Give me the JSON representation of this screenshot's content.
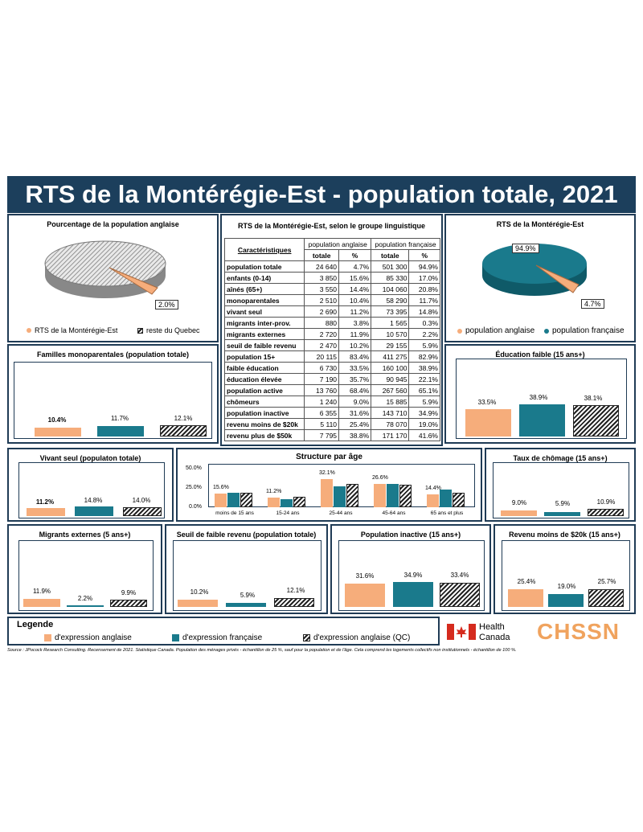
{
  "title": "RTS de la Montérégie-Est - population totale, 2021",
  "colors": {
    "english": "#f6ad7b",
    "french": "#1a7a8c",
    "header": "#1c3f5c"
  },
  "pie_left": {
    "title": "Pourcentage de la population anglaise",
    "label": "2.0%",
    "legend": [
      "RTS de la Montérégie-Est",
      "reste du Quebec"
    ]
  },
  "pie_right": {
    "title": "RTS de la Montérégie-Est",
    "label_big": "94.9%",
    "label_small": "4.7%",
    "legend": [
      "population anglaise",
      "population française"
    ]
  },
  "table": {
    "title": "RTS de la Montérégie-Est, selon le groupe linguistique",
    "head_char": "Caractéristiques",
    "head_en": "population anglaise",
    "head_fr": "population française",
    "sub_total": "totale",
    "sub_pct": "%",
    "rows": [
      {
        "label": "population totale",
        "en_t": "24 640",
        "en_p": "4.7%",
        "fr_t": "501 300",
        "fr_p": "94.9%"
      },
      {
        "label": "enfants (0-14)",
        "en_t": "3 850",
        "en_p": "15.6%",
        "fr_t": "85 330",
        "fr_p": "17.0%"
      },
      {
        "label": "aînés (65+)",
        "en_t": "3 550",
        "en_p": "14.4%",
        "fr_t": "104 060",
        "fr_p": "20.8%"
      },
      {
        "label": "monoparentales",
        "en_t": "2 510",
        "en_p": "10.4%",
        "fr_t": "58 290",
        "fr_p": "11.7%"
      },
      {
        "label": "vivant seul",
        "en_t": "2 690",
        "en_p": "11.2%",
        "fr_t": "73 395",
        "fr_p": "14.8%"
      },
      {
        "label": "migrants inter-prov.",
        "en_t": "880",
        "en_p": "3.8%",
        "fr_t": "1 565",
        "fr_p": "0.3%"
      },
      {
        "label": "migrants externes",
        "en_t": "2 720",
        "en_p": "11.9%",
        "fr_t": "10 570",
        "fr_p": "2.2%"
      },
      {
        "label": "seuil de faible revenu",
        "en_t": "2 470",
        "en_p": "10.2%",
        "fr_t": "29 155",
        "fr_p": "5.9%"
      },
      {
        "label": "population 15+",
        "en_t": "20 115",
        "en_p": "83.4%",
        "fr_t": "411 275",
        "fr_p": "82.9%"
      },
      {
        "label": "faible éducation",
        "en_t": "6 730",
        "en_p": "33.5%",
        "fr_t": "160 100",
        "fr_p": "38.9%"
      },
      {
        "label": "éducation élevée",
        "en_t": "7 190",
        "en_p": "35.7%",
        "fr_t": "90 945",
        "fr_p": "22.1%"
      },
      {
        "label": "population active",
        "en_t": "13 760",
        "en_p": "68.4%",
        "fr_t": "267 560",
        "fr_p": "65.1%"
      },
      {
        "label": "chômeurs",
        "en_t": "1 240",
        "en_p": "9.0%",
        "fr_t": "15 885",
        "fr_p": "5.9%"
      },
      {
        "label": "population inactive",
        "en_t": "6 355",
        "en_p": "31.6%",
        "fr_t": "143 710",
        "fr_p": "34.9%"
      },
      {
        "label": "revenu moins de $20k",
        "en_t": "5 110",
        "en_p": "25.4%",
        "fr_t": "78 070",
        "fr_p": "19.0%"
      },
      {
        "label": "revenu plus de $50k",
        "en_t": "7 795",
        "en_p": "38.8%",
        "fr_t": "171 170",
        "fr_p": "41.6%"
      }
    ]
  },
  "legend": {
    "title": "Legende",
    "items": [
      "d'expression anglaise",
      "d'expression française",
      "d'expression anglaise (QC)"
    ]
  },
  "logos": {
    "hc_line1": "Health",
    "hc_line2": "Canada",
    "chssn": "CHSSN"
  },
  "source": "Source : JPocock Research Consulting. Recensement de 2021. Statistique Canada. Population des ménages privés - échantillon de 25 %, sauf pour la population et de l'âge. Cela comprend les logements collectifs non institutionnels - échantillon de 100 %.",
  "chart_data": [
    {
      "type": "pie",
      "title": "Pourcentage de la population anglaise",
      "labels": [
        "RTS de la Montérégie-Est",
        "reste du Quebec"
      ],
      "values": [
        2.0,
        98.0
      ]
    },
    {
      "type": "pie",
      "title": "RTS de la Montérégie-Est",
      "labels": [
        "population anglaise",
        "population française"
      ],
      "values": [
        4.7,
        94.9
      ]
    },
    {
      "type": "bar",
      "title": "Familles monoparentales (population totale)",
      "categories": [
        "d'expression anglaise",
        "d'expression française",
        "d'expression anglaise (QC)"
      ],
      "values": [
        10.4,
        11.7,
        12.1
      ],
      "labels": [
        "10.4%",
        "11.7%",
        "12.1%"
      ]
    },
    {
      "type": "bar",
      "title": "Éducation faible (15 ans+)",
      "categories": [
        "d'expression anglaise",
        "d'expression française",
        "d'expression anglaise (QC)"
      ],
      "values": [
        33.5,
        38.9,
        38.1
      ],
      "labels": [
        "33.5%",
        "38.9%",
        "38.1%"
      ]
    },
    {
      "type": "bar",
      "title": "Vivant seul (populaton totale)",
      "categories": [
        "d'expression anglaise",
        "d'expression française",
        "d'expression anglaise (QC)"
      ],
      "values": [
        11.2,
        14.8,
        14.0
      ],
      "labels": [
        "11.2%",
        "14.8%",
        "14.0%"
      ]
    },
    {
      "type": "bar",
      "title": "Structure par âge",
      "categories": [
        "moins de 15 ans",
        "15-24 ans",
        "25-44 ans",
        "45-64 ans",
        "65 ans et plus"
      ],
      "series": [
        {
          "name": "d'expression anglaise",
          "values": [
            15.6,
            11.2,
            32.1,
            26.6,
            14.4
          ]
        },
        {
          "name": "d'expression française",
          "values": [
            17.0,
            9.5,
            24.0,
            26.5,
            20.8
          ]
        },
        {
          "name": "d'expression anglaise (QC)",
          "values": [
            16.5,
            12.0,
            27.0,
            25.5,
            16.5
          ]
        }
      ],
      "labels": [
        "15.6%",
        "11.2%",
        "32.1%",
        "26.6%",
        "14.4%"
      ],
      "yticks": [
        "50.0%",
        "25.0%",
        "0.0%"
      ],
      "ylim": [
        0,
        50
      ]
    },
    {
      "type": "bar",
      "title": "Taux de chômage (15 ans+)",
      "categories": [
        "d'expression anglaise",
        "d'expression française",
        "d'expression anglaise (QC)"
      ],
      "values": [
        9.0,
        5.9,
        10.9
      ],
      "labels": [
        "9.0%",
        "5.9%",
        "10.9%"
      ]
    },
    {
      "type": "bar",
      "title": "Migrants externes (5 ans+)",
      "categories": [
        "d'expression anglaise",
        "d'expression française",
        "d'expression anglaise (QC)"
      ],
      "values": [
        11.9,
        2.2,
        9.9
      ],
      "labels": [
        "11.9%",
        "2.2%",
        "9.9%"
      ]
    },
    {
      "type": "bar",
      "title": "Seuil de faible revenu (population totale)",
      "categories": [
        "d'expression anglaise",
        "d'expression française",
        "d'expression anglaise (QC)"
      ],
      "values": [
        10.2,
        5.9,
        12.1
      ],
      "labels": [
        "10.2%",
        "5.9%",
        "12.1%"
      ]
    },
    {
      "type": "bar",
      "title": "Population inactive (15 ans+)",
      "categories": [
        "d'expression anglaise",
        "d'expression française",
        "d'expression anglaise (QC)"
      ],
      "values": [
        31.6,
        34.9,
        33.4
      ],
      "labels": [
        "31.6%",
        "34.9%",
        "33.4%"
      ]
    },
    {
      "type": "bar",
      "title": "Revenu moins de $20k (15 ans+)",
      "categories": [
        "d'expression anglaise",
        "d'expression française",
        "d'expression anglaise (QC)"
      ],
      "values": [
        25.4,
        19.0,
        25.7
      ],
      "labels": [
        "25.4%",
        "19.0%",
        "25.7%"
      ]
    }
  ]
}
